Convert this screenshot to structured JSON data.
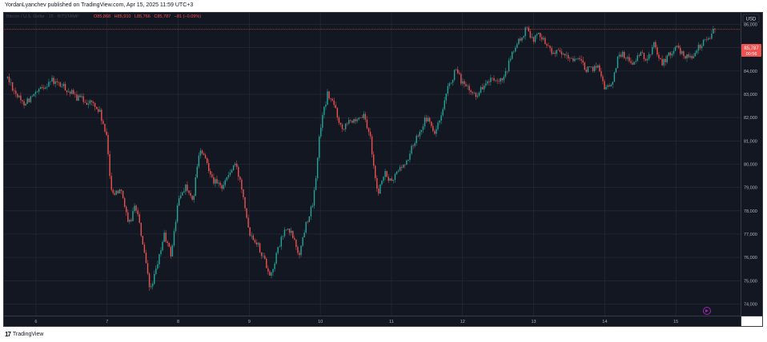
{
  "header": {
    "text": "YordanLyanchev published on TradingView.com, Apr 15, 2025 11:59 UTC+3"
  },
  "legend": {
    "symbol": "Bitcoin / U.S. Dollar · 15 · BITSTAMP",
    "o": "O85,868",
    "h": "H85,910",
    "l": "L85,766",
    "c": "C85,787",
    "chg": "−81 (−0.09%)"
  },
  "currency": "USD",
  "price_tag": {
    "price": "85,787",
    "countdown": "00:56"
  },
  "footer": {
    "logo": "17",
    "brand": "TradingView"
  },
  "colors": {
    "up": "#26a69a",
    "down": "#ef5350",
    "bg": "#131722",
    "grid": "#2a2e39"
  },
  "chart_data": {
    "type": "candlestick",
    "x_ticks": [
      "6",
      "7",
      "8",
      "9",
      "10",
      "11",
      "12",
      "13",
      "14",
      "15"
    ],
    "y_ticks": [
      "74,000",
      "75,000",
      "76,000",
      "77,000",
      "78,000",
      "79,000",
      "80,000",
      "81,000",
      "82,000",
      "83,000",
      "84,000",
      "85,000",
      "86,000"
    ],
    "ylim": [
      73500,
      86500
    ],
    "grid": true,
    "last_price": 85787,
    "path": [
      [
        5.6,
        83700
      ],
      [
        5.8,
        82600
      ],
      [
        6.0,
        83000
      ],
      [
        6.2,
        83600
      ],
      [
        6.4,
        83300
      ],
      [
        6.55,
        82900
      ],
      [
        6.8,
        82600
      ],
      [
        6.9,
        82200
      ],
      [
        7.0,
        81000
      ],
      [
        7.05,
        79100
      ],
      [
        7.1,
        78700
      ],
      [
        7.2,
        79000
      ],
      [
        7.3,
        77300
      ],
      [
        7.4,
        78300
      ],
      [
        7.5,
        76600
      ],
      [
        7.6,
        74600
      ],
      [
        7.7,
        75500
      ],
      [
        7.8,
        77000
      ],
      [
        7.9,
        76100
      ],
      [
        8.0,
        78400
      ],
      [
        8.1,
        79100
      ],
      [
        8.2,
        78300
      ],
      [
        8.3,
        80600
      ],
      [
        8.4,
        80100
      ],
      [
        8.5,
        79300
      ],
      [
        8.6,
        79000
      ],
      [
        8.7,
        79500
      ],
      [
        8.8,
        80000
      ],
      [
        8.9,
        79000
      ],
      [
        9.0,
        77100
      ],
      [
        9.1,
        76700
      ],
      [
        9.2,
        76000
      ],
      [
        9.3,
        75200
      ],
      [
        9.4,
        76300
      ],
      [
        9.5,
        77200
      ],
      [
        9.6,
        77000
      ],
      [
        9.7,
        76100
      ],
      [
        9.8,
        77500
      ],
      [
        9.9,
        78300
      ],
      [
        10.0,
        81600
      ],
      [
        10.1,
        83000
      ],
      [
        10.2,
        82500
      ],
      [
        10.3,
        81500
      ],
      [
        10.4,
        82000
      ],
      [
        10.5,
        81700
      ],
      [
        10.6,
        82100
      ],
      [
        10.7,
        81200
      ],
      [
        10.8,
        78700
      ],
      [
        10.9,
        79600
      ],
      [
        11.0,
        79200
      ],
      [
        11.1,
        79800
      ],
      [
        11.2,
        80000
      ],
      [
        11.3,
        80800
      ],
      [
        11.4,
        81500
      ],
      [
        11.5,
        82000
      ],
      [
        11.6,
        81300
      ],
      [
        11.7,
        82000
      ],
      [
        11.8,
        83300
      ],
      [
        11.9,
        84000
      ],
      [
        12.0,
        83500
      ],
      [
        12.1,
        83100
      ],
      [
        12.2,
        83000
      ],
      [
        12.3,
        83400
      ],
      [
        12.4,
        83600
      ],
      [
        12.5,
        83400
      ],
      [
        12.6,
        83800
      ],
      [
        12.7,
        84800
      ],
      [
        12.8,
        85300
      ],
      [
        12.9,
        85800
      ],
      [
        13.0,
        85400
      ],
      [
        13.1,
        85600
      ],
      [
        13.2,
        85000
      ],
      [
        13.3,
        84800
      ],
      [
        13.4,
        84700
      ],
      [
        13.5,
        84500
      ],
      [
        13.6,
        84600
      ],
      [
        13.7,
        84200
      ],
      [
        13.8,
        84000
      ],
      [
        13.9,
        84300
      ],
      [
        14.0,
        83300
      ],
      [
        14.1,
        83400
      ],
      [
        14.2,
        84800
      ],
      [
        14.3,
        84600
      ],
      [
        14.4,
        84300
      ],
      [
        14.5,
        84700
      ],
      [
        14.6,
        84500
      ],
      [
        14.7,
        85200
      ],
      [
        14.8,
        84300
      ],
      [
        14.9,
        84700
      ],
      [
        15.0,
        85000
      ],
      [
        15.1,
        84700
      ],
      [
        15.2,
        84600
      ],
      [
        15.3,
        84900
      ],
      [
        15.4,
        85300
      ],
      [
        15.5,
        85600
      ],
      [
        15.55,
        85787
      ]
    ]
  }
}
